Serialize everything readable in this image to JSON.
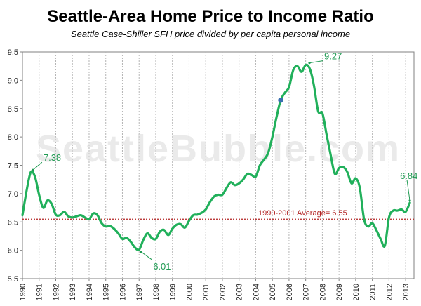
{
  "chart_data": {
    "type": "line",
    "title": "Seattle-Area Home Price to Income Ratio",
    "subtitle": "Seattle Case-Shiller SFH price divided by per capita personal income",
    "watermark": "SeattleBubble.com",
    "xlabel": "",
    "ylabel": "",
    "x_ticks": [
      "1990",
      "1991",
      "1992",
      "1993",
      "1994",
      "1995",
      "1996",
      "1997",
      "1998",
      "1999",
      "2000",
      "2001",
      "2002",
      "2003",
      "2004",
      "2005",
      "2006",
      "2007",
      "2008",
      "2009",
      "2010",
      "2011",
      "2012",
      "2013"
    ],
    "y_ticks": [
      "5.5",
      "6.0",
      "6.5",
      "7.0",
      "7.5",
      "8.0",
      "8.5",
      "9.0",
      "9.5"
    ],
    "xlim": [
      1990,
      2013.5
    ],
    "ylim": [
      5.5,
      9.5
    ],
    "grid": "vertical dotted",
    "series": [
      {
        "color": "#21b05b",
        "x": [
          1990.0,
          1990.25,
          1990.5,
          1990.75,
          1991.0,
          1991.25,
          1991.5,
          1991.75,
          1992.0,
          1992.25,
          1992.5,
          1992.75,
          1993.0,
          1993.25,
          1993.5,
          1993.75,
          1994.0,
          1994.25,
          1994.5,
          1994.75,
          1995.0,
          1995.25,
          1995.5,
          1995.75,
          1996.0,
          1996.25,
          1996.5,
          1996.75,
          1997.0,
          1997.25,
          1997.5,
          1997.75,
          1998.0,
          1998.25,
          1998.5,
          1998.75,
          1999.0,
          1999.25,
          1999.5,
          1999.75,
          2000.0,
          2000.25,
          2000.5,
          2000.75,
          2001.0,
          2001.25,
          2001.5,
          2001.75,
          2002.0,
          2002.25,
          2002.5,
          2002.75,
          2003.0,
          2003.25,
          2003.5,
          2003.75,
          2004.0,
          2004.25,
          2004.5,
          2004.75,
          2005.0,
          2005.25,
          2005.5,
          2005.75,
          2006.0,
          2006.25,
          2006.5,
          2006.75,
          2007.0,
          2007.25,
          2007.5,
          2007.75,
          2008.0,
          2008.25,
          2008.5,
          2008.75,
          2009.0,
          2009.25,
          2009.5,
          2009.75,
          2010.0,
          2010.25,
          2010.5,
          2010.75,
          2011.0,
          2011.25,
          2011.5,
          2011.75,
          2012.0,
          2012.25,
          2012.5,
          2012.75,
          2013.0,
          2013.25
        ],
        "y": [
          6.62,
          7.05,
          7.38,
          7.3,
          6.98,
          6.75,
          6.88,
          6.82,
          6.63,
          6.62,
          6.68,
          6.6,
          6.58,
          6.6,
          6.62,
          6.58,
          6.55,
          6.65,
          6.62,
          6.48,
          6.42,
          6.43,
          6.38,
          6.3,
          6.2,
          6.22,
          6.15,
          6.05,
          6.01,
          6.18,
          6.3,
          6.22,
          6.2,
          6.33,
          6.36,
          6.27,
          6.38,
          6.45,
          6.46,
          6.4,
          6.52,
          6.62,
          6.63,
          6.66,
          6.72,
          6.85,
          6.95,
          6.98,
          6.98,
          7.1,
          7.2,
          7.15,
          7.18,
          7.25,
          7.35,
          7.33,
          7.3,
          7.5,
          7.6,
          7.72,
          8.0,
          8.35,
          8.65,
          8.78,
          8.88,
          9.18,
          9.25,
          9.15,
          9.27,
          9.2,
          8.9,
          8.45,
          8.42,
          8.05,
          7.68,
          7.35,
          7.45,
          7.47,
          7.38,
          7.18,
          7.27,
          7.1,
          6.55,
          6.42,
          6.48,
          6.35,
          6.2,
          6.08,
          6.58,
          6.7,
          6.7,
          6.72,
          6.68,
          6.84
        ]
      }
    ],
    "reference_line": {
      "value": 6.55,
      "label": "1990-2001 Average= 6.55",
      "color": "#b22222"
    },
    "highlight_point": {
      "x": 2005.5,
      "y": 8.65,
      "color": "#3a6fb0"
    },
    "annotations": [
      {
        "text": "7.38",
        "x": 1990.5,
        "y": 7.38
      },
      {
        "text": "6.01",
        "x": 1997.0,
        "y": 6.01
      },
      {
        "text": "9.27",
        "x": 2007.1,
        "y": 9.27
      },
      {
        "text": "6.84",
        "x": 2013.25,
        "y": 6.84
      }
    ]
  }
}
